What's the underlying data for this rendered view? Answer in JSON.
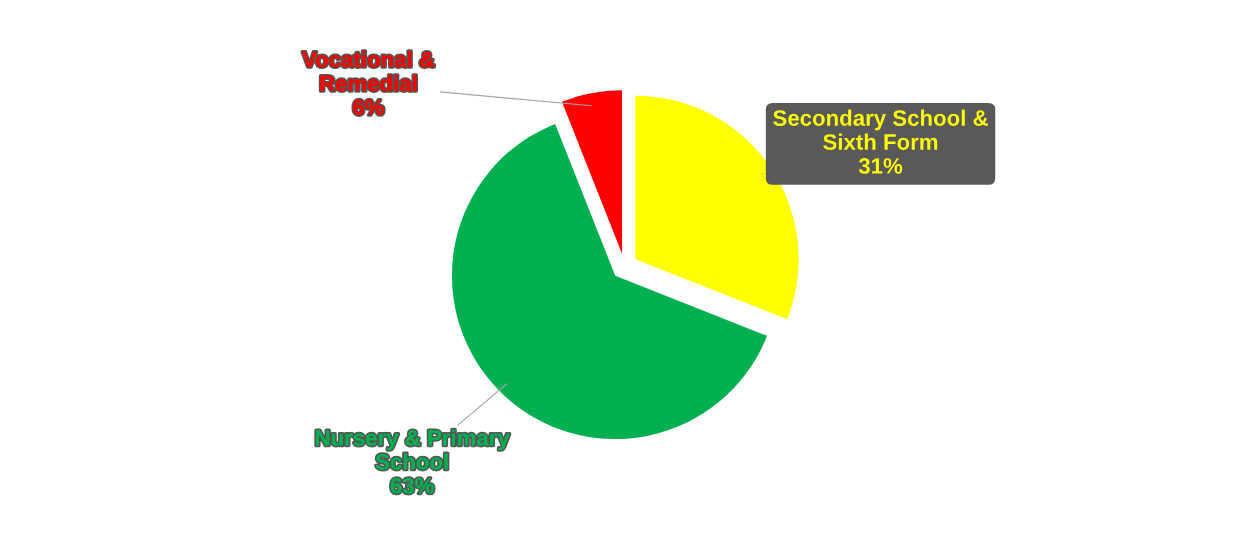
{
  "chart_data": {
    "type": "pie",
    "categories": [
      "Secondary School & Sixth Form",
      "Nursery & Primary School",
      "Vocational & Remedial"
    ],
    "values": [
      31,
      63,
      6
    ],
    "colors": [
      "#ffff00",
      "#00b050",
      "#ff0000"
    ],
    "value_labels": [
      "31%",
      "63%",
      "6%"
    ],
    "legend": false
  }
}
